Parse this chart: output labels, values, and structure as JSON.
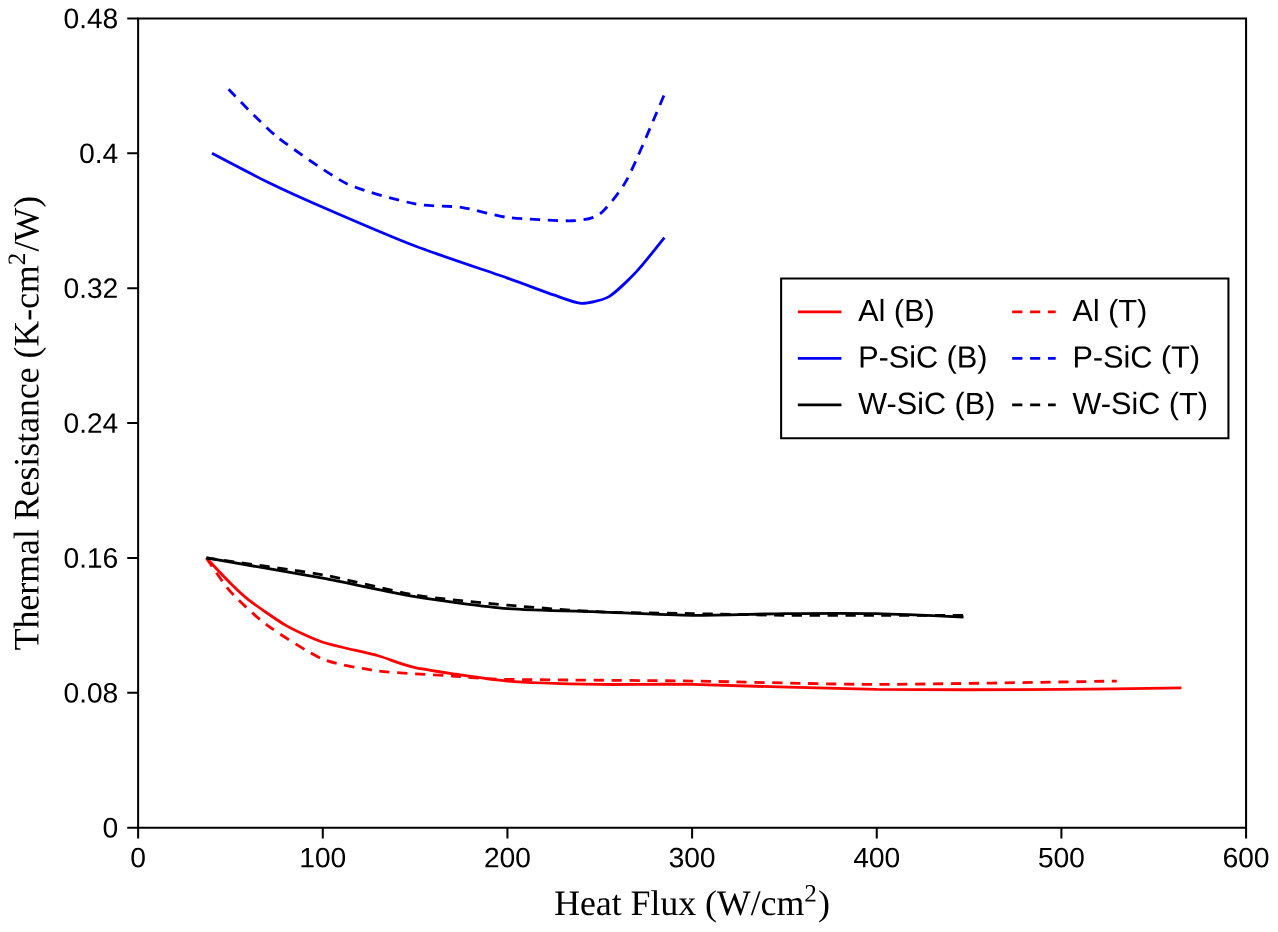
{
  "chart_data": {
    "type": "line",
    "xlabel": "Heat Flux (W/cm$^{2}$)",
    "ylabel": "Thermal Resistance (K-cm$^{2}$/W)",
    "xlim": [
      0,
      600
    ],
    "xticks": [
      0,
      100,
      200,
      300,
      400,
      500,
      600
    ],
    "ylim": [
      0,
      0.48
    ],
    "yticks": [
      0,
      0.08,
      0.16,
      0.24,
      0.32,
      0.4,
      0.48
    ],
    "legend": "right",
    "grid": false,
    "marker": "none",
    "series": [
      {
        "name": "Al (B)",
        "color": "#ff0000",
        "line_style": "solid",
        "x": [
          37,
          50,
          60,
          80,
          100,
          130,
          150,
          200,
          250,
          300,
          400,
          500,
          565
        ],
        "values": [
          0.16,
          0.145,
          0.135,
          0.12,
          0.11,
          0.102,
          0.095,
          0.087,
          0.085,
          0.085,
          0.082,
          0.082,
          0.083
        ]
      },
      {
        "name": "Al (T)",
        "color": "#ff0000",
        "line_style": "dashed",
        "x": [
          37,
          50,
          70,
          100,
          130,
          170,
          200,
          300,
          400,
          530
        ],
        "values": [
          0.16,
          0.14,
          0.12,
          0.1,
          0.093,
          0.09,
          0.088,
          0.087,
          0.085,
          0.087
        ]
      },
      {
        "name": "P-SiC (B)",
        "color": "#0000ff",
        "line_style": "solid",
        "x": [
          40,
          70,
          100,
          150,
          200,
          225,
          240,
          255,
          270,
          285
        ],
        "values": [
          0.4,
          0.383,
          0.368,
          0.345,
          0.326,
          0.316,
          0.311,
          0.315,
          0.33,
          0.35
        ]
      },
      {
        "name": "P-SiC (T)",
        "color": "#0000ff",
        "line_style": "dashed",
        "x": [
          49,
          75,
          113,
          150,
          175,
          200,
          235,
          250,
          265,
          285
        ],
        "values": [
          0.438,
          0.41,
          0.382,
          0.37,
          0.368,
          0.362,
          0.36,
          0.364,
          0.385,
          0.435
        ]
      },
      {
        "name": "W-SiC (B)",
        "color": "#000000",
        "line_style": "solid",
        "x": [
          37,
          100,
          150,
          200,
          250,
          300,
          350,
          400,
          447
        ],
        "values": [
          0.16,
          0.148,
          0.137,
          0.13,
          0.128,
          0.126,
          0.127,
          0.127,
          0.125
        ]
      },
      {
        "name": "W-SiC (T)",
        "color": "#000000",
        "line_style": "dashed",
        "x": [
          37,
          100,
          150,
          200,
          250,
          300,
          350,
          400,
          447
        ],
        "values": [
          0.16,
          0.15,
          0.138,
          0.132,
          0.128,
          0.127,
          0.126,
          0.126,
          0.126
        ]
      }
    ]
  }
}
